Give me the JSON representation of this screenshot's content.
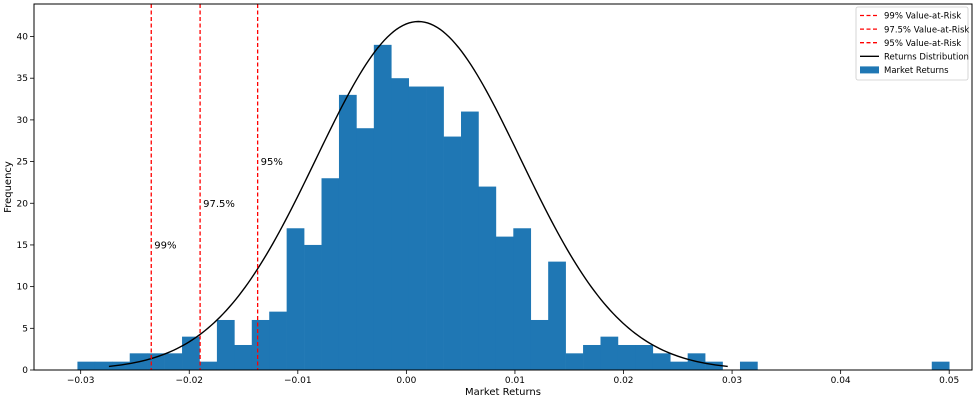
{
  "chart_data": {
    "type": "histogram",
    "xlabel": "Market Returns",
    "ylabel": "Frequency",
    "xlim": [
      -0.0343,
      0.0521
    ],
    "ylim": [
      0,
      43.9
    ],
    "x_ticks": [
      -0.03,
      -0.02,
      -0.01,
      0.0,
      0.01,
      0.02,
      0.03,
      0.04,
      0.05
    ],
    "x_tick_labels": [
      "−0.03",
      "−0.02",
      "−0.01",
      "0.00",
      "0.01",
      "0.02",
      "0.03",
      "0.04",
      "0.05"
    ],
    "y_ticks": [
      0,
      5,
      10,
      15,
      20,
      25,
      30,
      35,
      40
    ],
    "y_tick_labels": [
      "0",
      "5",
      "10",
      "15",
      "20",
      "25",
      "30",
      "35",
      "40"
    ],
    "grid": false,
    "legend_position": "top-right",
    "histogram": {
      "name": "Market Returns",
      "color": "#1f77b4",
      "bin_start": -0.0303,
      "bin_width": 0.001606,
      "counts": [
        1,
        1,
        1,
        2,
        2,
        2,
        4,
        1,
        6,
        3,
        6,
        7,
        17,
        15,
        23,
        33,
        29,
        39,
        35,
        34,
        34,
        28,
        31,
        22,
        16,
        17,
        6,
        13,
        2,
        3,
        4,
        3,
        3,
        2,
        1,
        2,
        1,
        0,
        1,
        0,
        0,
        0,
        0,
        0,
        0,
        0,
        0,
        0,
        0,
        1
      ]
    },
    "distribution": {
      "name": "Returns Distribution",
      "color": "#000000",
      "mean": 0.0011,
      "std": 0.00941,
      "peak": 41.8,
      "x_range": [
        -0.0274,
        0.0296
      ]
    },
    "var_lines": [
      {
        "name": "99% Value-at-Risk",
        "x": -0.0235,
        "label": "99%",
        "label_y": 15,
        "color": "#ff0000"
      },
      {
        "name": "97.5% Value-at-Risk",
        "x": -0.019,
        "label": "97.5%",
        "label_y": 20,
        "color": "#ff0000"
      },
      {
        "name": "95% Value-at-Risk",
        "x": -0.0137,
        "label": "95%",
        "label_y": 25,
        "color": "#ff0000"
      }
    ],
    "legend": [
      {
        "label": "99% Value-at-Risk",
        "kind": "dashed",
        "color": "#ff0000"
      },
      {
        "label": "97.5% Value-at-Risk",
        "kind": "dashed",
        "color": "#ff0000"
      },
      {
        "label": "95% Value-at-Risk",
        "kind": "dashed",
        "color": "#ff0000"
      },
      {
        "label": "Returns Distribution",
        "kind": "line",
        "color": "#000000"
      },
      {
        "label": "Market Returns",
        "kind": "patch",
        "color": "#1f77b4"
      }
    ]
  }
}
